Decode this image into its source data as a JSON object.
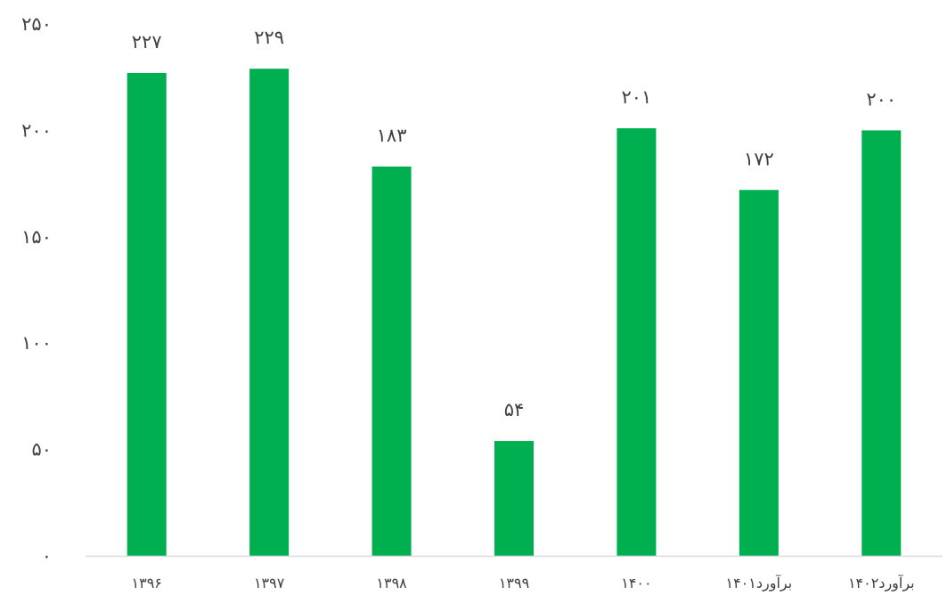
{
  "chart_data": {
    "type": "bar",
    "categories": [
      "۱۳۹۶",
      "۱۳۹۷",
      "۱۳۹۸",
      "۱۳۹۹",
      "۱۴۰۰",
      "۱۴۰۱برآورد",
      "۱۴۰۲برآورد"
    ],
    "values": [
      227,
      229,
      183,
      54,
      201,
      172,
      200
    ],
    "data_labels": [
      "۲۲۷",
      "۲۲۹",
      "۱۸۳",
      "۵۴",
      "۲۰۱",
      "۱۷۲",
      "۲۰۰"
    ],
    "ylim": [
      0,
      250
    ],
    "yticks": [
      0,
      50,
      100,
      150,
      200,
      250
    ],
    "ytick_labels": [
      "۰",
      "۵۰",
      "۱۰۰",
      "۱۵۰",
      "۲۰۰",
      "۲۵۰"
    ],
    "title": "",
    "xlabel": "",
    "ylabel": "",
    "grid": false,
    "legend": "none",
    "bar_color": "#00b050",
    "axis_color": "#d9d9d9"
  }
}
